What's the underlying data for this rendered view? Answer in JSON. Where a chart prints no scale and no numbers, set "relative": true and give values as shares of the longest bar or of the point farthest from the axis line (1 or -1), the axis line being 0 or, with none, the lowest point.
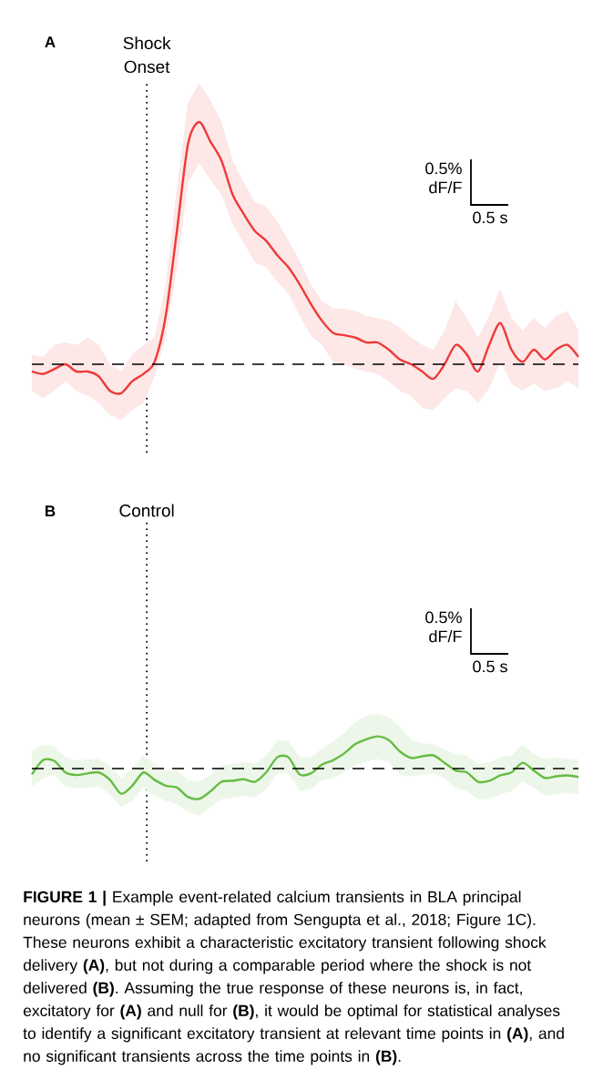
{
  "chart_data": [
    {
      "type": "line",
      "title": "A",
      "relative": true,
      "categories": [
        null,
        null,
        null,
        null,
        null,
        null,
        null,
        null,
        null,
        null,
        null,
        null,
        null,
        null,
        null,
        null,
        null,
        null,
        null,
        null,
        null,
        null,
        null,
        null,
        null,
        null,
        null,
        null,
        null,
        null,
        null,
        null,
        null,
        null,
        null,
        null,
        null,
        null,
        null,
        null,
        null,
        null,
        null,
        null,
        null,
        null,
        null,
        null,
        null,
        null
      ],
      "series": [
        {
          "color": "#ee3a3a",
          "values": [
            -0.03,
            -0.04,
            -0.02,
            0.0,
            -0.03,
            -0.03,
            -0.05,
            -0.11,
            -0.12,
            -0.07,
            -0.04,
            0.01,
            0.2,
            0.55,
            0.91,
            1,
            0.92,
            0.84,
            0.7,
            0.62,
            0.55,
            0.51,
            0.45,
            0.4,
            0.33,
            0.25,
            0.18,
            0.13,
            0.12,
            0.11,
            0.09,
            0.09,
            0.06,
            0.02,
            0.0,
            -0.03,
            -0.06,
            0.0,
            0.08,
            0.04,
            -0.03,
            0.08,
            0.17,
            0.06,
            0.01,
            0.06,
            0.02,
            0.06,
            0.08,
            0.03
          ],
          "upper": [
            0.04,
            0.03,
            0.08,
            0.09,
            0.08,
            0.11,
            0.08,
            0.0,
            -0.03,
            0.04,
            0.08,
            0.11,
            0.33,
            0.73,
            1.08,
            1.16,
            1.09,
            1.0,
            0.84,
            0.75,
            0.67,
            0.65,
            0.59,
            0.51,
            0.43,
            0.33,
            0.26,
            0.23,
            0.23,
            0.22,
            0.2,
            0.19,
            0.18,
            0.15,
            0.11,
            0.08,
            0.06,
            0.14,
            0.26,
            0.19,
            0.11,
            0.2,
            0.31,
            0.19,
            0.14,
            0.19,
            0.15,
            0.2,
            0.22,
            0.14
          ],
          "lower": [
            -0.11,
            -0.14,
            -0.11,
            -0.07,
            -0.11,
            -0.13,
            -0.16,
            -0.21,
            -0.23,
            -0.19,
            -0.16,
            -0.05,
            0.11,
            0.39,
            0.75,
            0.83,
            0.76,
            0.7,
            0.58,
            0.5,
            0.42,
            0.4,
            0.34,
            0.29,
            0.2,
            0.12,
            0.08,
            0.01,
            0.0,
            -0.02,
            -0.03,
            -0.04,
            -0.07,
            -0.11,
            -0.13,
            -0.18,
            -0.19,
            -0.14,
            -0.1,
            -0.11,
            -0.16,
            -0.1,
            0.01,
            -0.08,
            -0.11,
            -0.08,
            -0.11,
            -0.1,
            -0.07,
            -0.1
          ]
        }
      ],
      "ref_lines": [
        {
          "axis": "y",
          "value": 0
        }
      ],
      "annotations": [
        "Shock Onset",
        "0.5% dF/F",
        "0.5 s"
      ]
    },
    {
      "type": "line",
      "title": "B",
      "relative": true,
      "categories": [
        null,
        null,
        null,
        null,
        null,
        null,
        null,
        null,
        null,
        null,
        null,
        null,
        null,
        null,
        null,
        null,
        null,
        null,
        null,
        null,
        null,
        null,
        null,
        null,
        null,
        null,
        null,
        null,
        null,
        null,
        null,
        null,
        null,
        null,
        null,
        null,
        null,
        null,
        null,
        null,
        null,
        null,
        null,
        null,
        null,
        null,
        null,
        null,
        null,
        null
      ],
      "series": [
        {
          "color": "#66bb44",
          "values": [
            -0.18,
            0.26,
            0.24,
            -0.12,
            -0.2,
            -0.15,
            -0.12,
            -0.35,
            -0.78,
            -0.53,
            -0.12,
            -0.35,
            -0.53,
            -0.59,
            -0.88,
            -0.94,
            -0.71,
            -0.41,
            -0.38,
            -0.33,
            -0.41,
            -0.12,
            0.35,
            0.35,
            -0.18,
            -0.15,
            0.12,
            0.26,
            0.47,
            0.76,
            0.91,
            1,
            0.88,
            0.53,
            0.33,
            0.38,
            0.41,
            0.18,
            -0.06,
            -0.12,
            -0.41,
            -0.38,
            -0.21,
            -0.12,
            0.18,
            -0.06,
            -0.29,
            -0.24,
            -0.21,
            -0.26
          ],
          "upper": [
            0.55,
            0.75,
            0.7,
            0.35,
            0.25,
            0.3,
            0.3,
            0.1,
            -0.3,
            0.0,
            0.4,
            0.15,
            -0.05,
            -0.05,
            -0.35,
            -0.4,
            -0.2,
            0.1,
            0.15,
            0.2,
            0.15,
            0.4,
            0.9,
            0.85,
            0.35,
            0.35,
            0.62,
            0.85,
            1.1,
            1.45,
            1.65,
            1.7,
            1.6,
            1.3,
            0.9,
            0.8,
            0.75,
            0.6,
            0.45,
            0.4,
            0.15,
            0.2,
            0.35,
            0.4,
            0.75,
            0.45,
            0.3,
            0.35,
            0.3,
            0.3
          ],
          "lower": [
            -0.55,
            -0.3,
            -0.2,
            -0.55,
            -0.6,
            -0.6,
            -0.55,
            -0.8,
            -1.2,
            -1.0,
            -0.6,
            -0.85,
            -1.0,
            -1.1,
            -1.35,
            -1.45,
            -1.2,
            -0.95,
            -0.9,
            -0.85,
            -0.9,
            -0.65,
            -0.15,
            -0.15,
            -0.7,
            -0.65,
            -0.35,
            -0.3,
            -0.12,
            0.1,
            0.22,
            0.3,
            0.2,
            -0.2,
            -0.25,
            -0.2,
            -0.15,
            -0.3,
            -0.6,
            -0.7,
            -0.95,
            -0.95,
            -0.8,
            -0.7,
            -0.4,
            -0.6,
            -0.85,
            -0.8,
            -0.75,
            -0.8
          ]
        }
      ],
      "ref_lines": [
        {
          "axis": "y",
          "value": 0
        }
      ],
      "annotations": [
        "Control",
        "0.5% dF/F",
        "0.5 s",
        "**FIGURE 1 |** Example event-related calcium transients in BLA principal neurons (mean ± SEM; adapted from Sengupta et al., 2018; Figure 1C). These neurons exhibit a characteristic excitatory transient following shock delivery **(A)**, but not during a comparable period where the shock is not delivered **(B)**. Assuming the true response of these neurons is, in fact, excitatory for **(A)** and null for **(B)**, it would be optimal for statistical analyses to identify a significant excitatory transient at relevant time points in **(A)**, and no significant transients across the time points in **(B)**."
      ]
    }
  ]
}
